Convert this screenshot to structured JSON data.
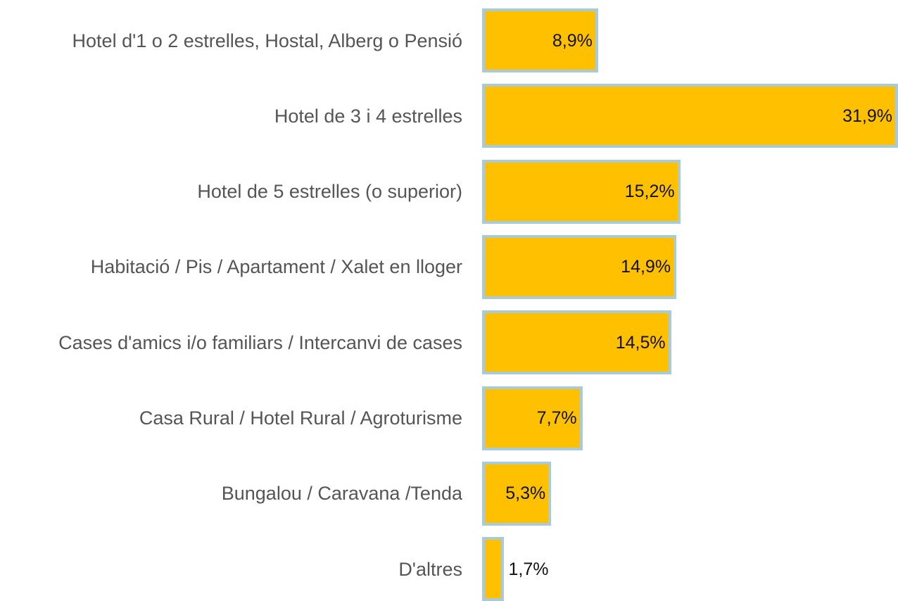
{
  "chart_data": {
    "type": "bar",
    "orientation": "horizontal",
    "color": "#ffc000",
    "border_color": "#a9cbd6",
    "categories": [
      "Hotel d'1 o 2 estrelles, Hostal, Alberg o Pensió",
      "Hotel de 3 i 4 estrelles",
      "Hotel de 5 estrelles (o superior)",
      "Habitació / Pis / Apartament / Xalet en lloger",
      "Cases d'amics i/o familiars / Intercanvi de cases",
      "Casa Rural / Hotel Rural / Agroturisme",
      "Bungalou / Caravana /Tenda",
      "D'altres"
    ],
    "values": [
      8.9,
      31.9,
      15.2,
      14.9,
      14.5,
      7.7,
      5.3,
      1.7
    ],
    "value_labels": [
      "8,9%",
      "31,9%",
      "15,2%",
      "14,9%",
      "14,5%",
      "7,7%",
      "5,3%",
      "1,7%"
    ]
  }
}
